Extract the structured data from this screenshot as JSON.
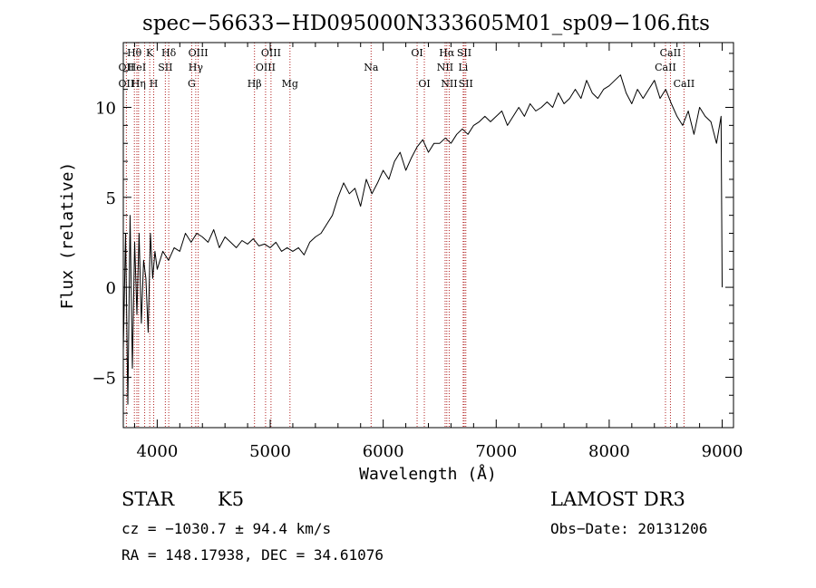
{
  "chart_data": {
    "type": "line",
    "title": "spec−56633−HD095000N333605M01_sp09−106.fits",
    "xlabel": "Wavelength (Å)",
    "ylabel": "Flux (relative)",
    "xlim": [
      3700,
      9100
    ],
    "ylim": [
      -7.8,
      13.6
    ],
    "x_ticks": [
      4000,
      5000,
      6000,
      7000,
      8000,
      9000
    ],
    "y_ticks": [
      -5,
      0,
      5,
      10
    ],
    "grid": false,
    "line_color": "#000000",
    "marker_color": "#b22222",
    "series": [
      {
        "x": [
          3700,
          3720,
          3740,
          3760,
          3780,
          3800,
          3820,
          3840,
          3860,
          3880,
          3900,
          3920,
          3940,
          3960,
          3980,
          4000,
          4050,
          4100,
          4150,
          4200,
          4250,
          4300,
          4350,
          4400,
          4450,
          4500,
          4550,
          4600,
          4650,
          4700,
          4750,
          4800,
          4850,
          4900,
          4950,
          5000,
          5050,
          5100,
          5150,
          5200,
          5250,
          5300,
          5350,
          5400,
          5450,
          5500,
          5550,
          5600,
          5650,
          5700,
          5750,
          5800,
          5850,
          5900,
          5950,
          6000,
          6050,
          6100,
          6150,
          6200,
          6250,
          6300,
          6350,
          6400,
          6450,
          6500,
          6550,
          6600,
          6650,
          6700,
          6750,
          6800,
          6850,
          6900,
          6950,
          7000,
          7050,
          7100,
          7150,
          7200,
          7250,
          7300,
          7350,
          7400,
          7450,
          7500,
          7550,
          7600,
          7650,
          7700,
          7750,
          7800,
          7850,
          7900,
          7950,
          8000,
          8050,
          8100,
          8150,
          8200,
          8250,
          8300,
          8350,
          8400,
          8450,
          8500,
          8550,
          8600,
          8650,
          8700,
          8750,
          8800,
          8850,
          8900,
          8950,
          8990,
          9000
        ],
        "y": [
          -3.5,
          3.0,
          -6.5,
          4.0,
          -4.5,
          2.5,
          -1.5,
          3.0,
          -2.0,
          1.5,
          0.5,
          -2.5,
          3.0,
          0.5,
          2.0,
          1.0,
          2.0,
          1.5,
          2.2,
          2.0,
          3.0,
          2.5,
          3.0,
          2.8,
          2.5,
          3.2,
          2.2,
          2.8,
          2.5,
          2.2,
          2.6,
          2.4,
          2.7,
          2.3,
          2.4,
          2.2,
          2.5,
          2.0,
          2.2,
          2.0,
          2.2,
          1.8,
          2.5,
          2.8,
          3.0,
          3.5,
          4.0,
          5.0,
          5.8,
          5.2,
          5.5,
          4.5,
          6.0,
          5.2,
          5.8,
          6.5,
          6.0,
          7.0,
          7.5,
          6.5,
          7.2,
          7.8,
          8.2,
          7.5,
          8.0,
          8.0,
          8.3,
          8.0,
          8.5,
          8.8,
          8.5,
          9.0,
          9.2,
          9.5,
          9.2,
          9.5,
          9.8,
          9.0,
          9.5,
          10.0,
          9.5,
          10.2,
          9.8,
          10.0,
          10.3,
          10.0,
          10.8,
          10.2,
          10.5,
          11.0,
          10.5,
          11.5,
          10.8,
          10.5,
          11.0,
          11.2,
          11.5,
          11.8,
          10.8,
          10.2,
          11.0,
          10.5,
          11.0,
          11.5,
          10.5,
          11.0,
          10.2,
          9.5,
          9.0,
          9.8,
          8.5,
          10.0,
          9.5,
          9.2,
          8.0,
          9.5,
          0.0
        ]
      }
    ],
    "line_labels": [
      {
        "text": "Hθ",
        "wl": 3798,
        "row": 0
      },
      {
        "text": "OII",
        "wl": 3727,
        "row": 1
      },
      {
        "text": "OII",
        "wl": 3727,
        "row": 2
      },
      {
        "text": "HeI",
        "wl": 3820,
        "row": 1
      },
      {
        "text": "Hη",
        "wl": 3835,
        "row": 2
      },
      {
        "text": "K",
        "wl": 3934,
        "row": 0
      },
      {
        "text": "SII",
        "wl": 4072,
        "row": 1
      },
      {
        "text": "H",
        "wl": 3969,
        "row": 2
      },
      {
        "text": "Hδ",
        "wl": 4102,
        "row": 0
      },
      {
        "text": "OIII",
        "wl": 4363,
        "row": 0
      },
      {
        "text": "Hγ",
        "wl": 4341,
        "row": 1
      },
      {
        "text": "G",
        "wl": 4305,
        "row": 2
      },
      {
        "text": "Hβ",
        "wl": 4861,
        "row": 2
      },
      {
        "text": "OIII",
        "wl": 5007,
        "row": 0
      },
      {
        "text": "OIII",
        "wl": 4959,
        "row": 1
      },
      {
        "text": "Mg",
        "wl": 5175,
        "row": 2
      },
      {
        "text": "Na",
        "wl": 5893,
        "row": 1
      },
      {
        "text": "OI",
        "wl": 6300,
        "row": 0
      },
      {
        "text": "OI",
        "wl": 6364,
        "row": 2
      },
      {
        "text": "Hα",
        "wl": 6563,
        "row": 0
      },
      {
        "text": "SII",
        "wl": 6717,
        "row": 0
      },
      {
        "text": "NII",
        "wl": 6548,
        "row": 1
      },
      {
        "text": "Li",
        "wl": 6708,
        "row": 1
      },
      {
        "text": "NII",
        "wl": 6584,
        "row": 2
      },
      {
        "text": "SII",
        "wl": 6731,
        "row": 2
      },
      {
        "text": "CaII",
        "wl": 8542,
        "row": 0
      },
      {
        "text": "CaII",
        "wl": 8498,
        "row": 1
      },
      {
        "text": "CaII",
        "wl": 8662,
        "row": 2
      }
    ],
    "line_markers": [
      3727,
      3798,
      3820,
      3835,
      3889,
      3934,
      3969,
      4072,
      4102,
      4305,
      4341,
      4363,
      4861,
      4959,
      5007,
      5175,
      5893,
      6300,
      6364,
      6548,
      6563,
      6584,
      6708,
      6717,
      6731,
      8498,
      8542,
      8662
    ]
  },
  "info": {
    "object_class": "STAR",
    "subclass": "K5",
    "survey": "LAMOST DR3",
    "cz": "cz = −1030.7 ± 94.4 km/s",
    "obs_date": "Obs−Date: 20131206",
    "coords": "RA = 148.17938, DEC =  34.61076"
  }
}
